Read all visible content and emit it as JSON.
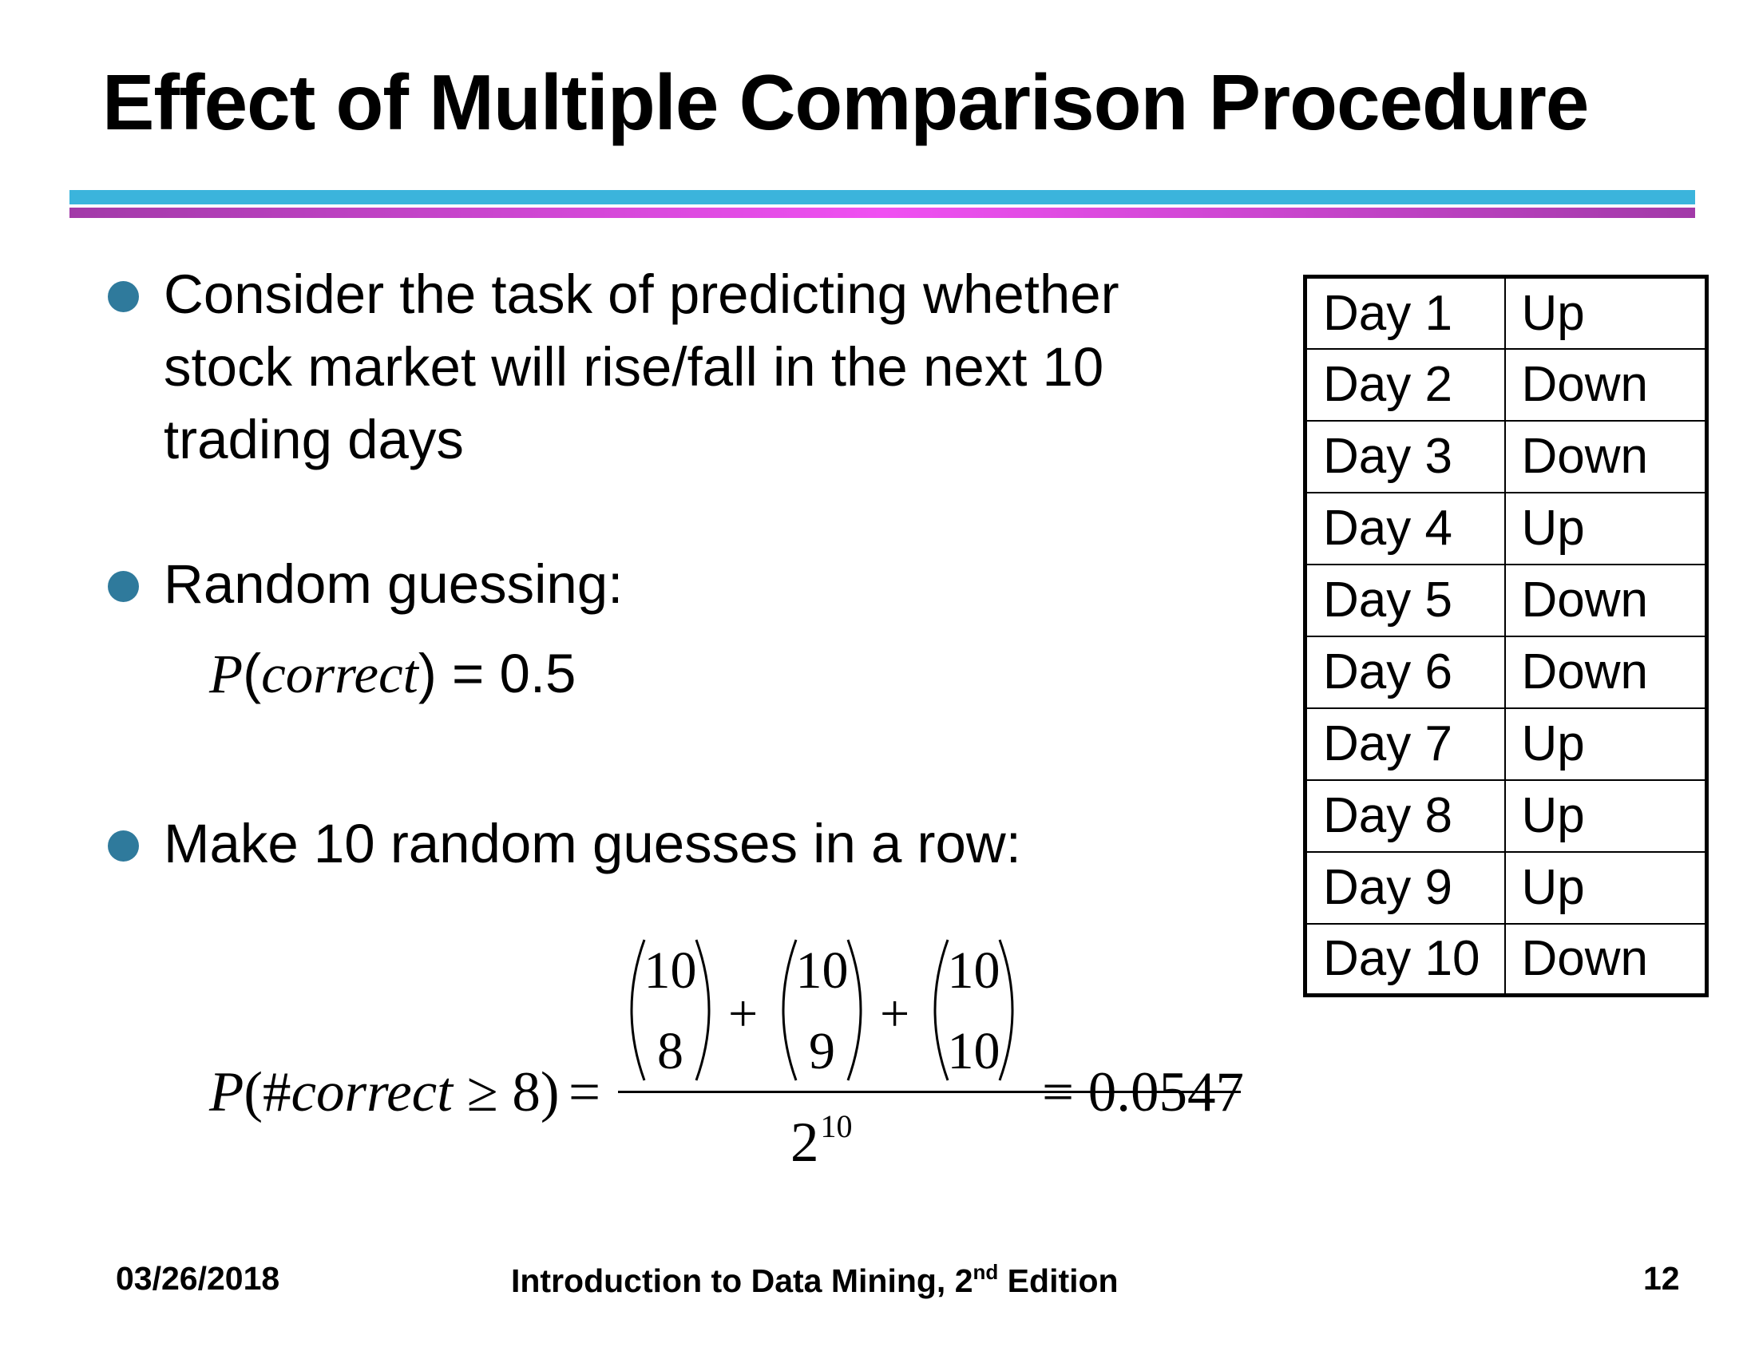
{
  "slide": {
    "title": "Effect of Multiple Comparison Procedure"
  },
  "colors": {
    "title_rule_top": "#3bb4dc",
    "title_rule_bottom": "#e04ce6",
    "bullet": "#2f7a9c"
  },
  "bullets": [
    {
      "text": "Consider the task of predicting whether stock market will rise/fall in the next 10 trading days"
    },
    {
      "text": "Random guessing:"
    },
    {
      "text": "Make 10 random guesses in a row:"
    }
  ],
  "probability_single": {
    "symbol": "P",
    "argument": "correct",
    "rhs": "= 0.5"
  },
  "formula": {
    "lhs_P": "P",
    "lhs_args": "(#",
    "lhs_italic": "correct",
    "lhs_rest": "≥ 8)",
    "equals": "=",
    "binomials": [
      {
        "n": "10",
        "k": "8"
      },
      {
        "n": "10",
        "k": "9"
      },
      {
        "n": "10",
        "k": "10"
      }
    ],
    "plus": "+",
    "denominator_base": "2",
    "denominator_exp": "10",
    "result": "= 0.0547"
  },
  "table": {
    "rows": [
      {
        "day": "Day 1",
        "move": "Up"
      },
      {
        "day": "Day 2",
        "move": "Down"
      },
      {
        "day": "Day 3",
        "move": "Down"
      },
      {
        "day": "Day 4",
        "move": "Up"
      },
      {
        "day": "Day 5",
        "move": "Down"
      },
      {
        "day": "Day 6",
        "move": "Down"
      },
      {
        "day": "Day 7",
        "move": "Up"
      },
      {
        "day": "Day 8",
        "move": "Up"
      },
      {
        "day": "Day 9",
        "move": "Up"
      },
      {
        "day": "Day 10",
        "move": "Down"
      }
    ]
  },
  "footer": {
    "date": "03/26/2018",
    "book_main": "Introduction to Data Mining, 2",
    "book_sup": "nd",
    "book_end": " Edition",
    "page": "12"
  }
}
